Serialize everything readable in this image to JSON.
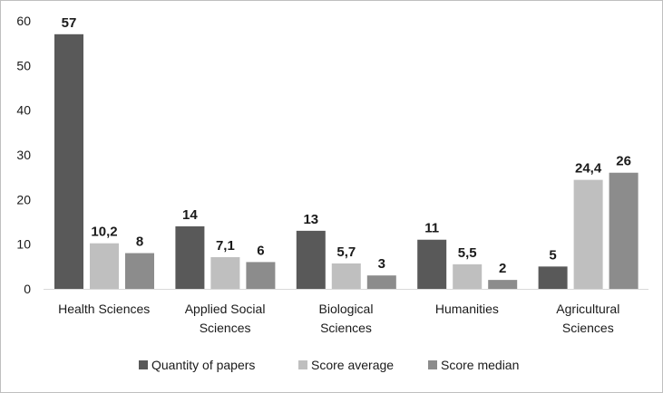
{
  "chart_data": {
    "type": "bar",
    "categories": [
      [
        "Health Sciences"
      ],
      [
        "Applied Social",
        "Sciences"
      ],
      [
        "Biological",
        "Sciences"
      ],
      [
        "Humanities"
      ],
      [
        "Agricultural",
        "Sciences"
      ]
    ],
    "series": [
      {
        "name": "Quantity of papers",
        "color": "#595959",
        "values": [
          57,
          14,
          13,
          11,
          5
        ],
        "labels": [
          "57",
          "14",
          "13",
          "11",
          "5"
        ]
      },
      {
        "name": "Score average",
        "color": "#bfbfbf",
        "values": [
          10.2,
          7.1,
          5.7,
          5.5,
          24.4
        ],
        "labels": [
          "10,2",
          "7,1",
          "5,7",
          "5,5",
          "24,4"
        ]
      },
      {
        "name": "Score median",
        "color": "#8c8c8c",
        "values": [
          8,
          6,
          3,
          2,
          26
        ],
        "labels": [
          "8",
          "6",
          "3",
          "2",
          "26"
        ]
      }
    ],
    "ylim": [
      0,
      60
    ],
    "yticks": [
      0,
      10,
      20,
      30,
      40,
      50,
      60
    ],
    "grid": false,
    "legend": "bottom",
    "title": "",
    "xlabel": "",
    "ylabel": ""
  }
}
